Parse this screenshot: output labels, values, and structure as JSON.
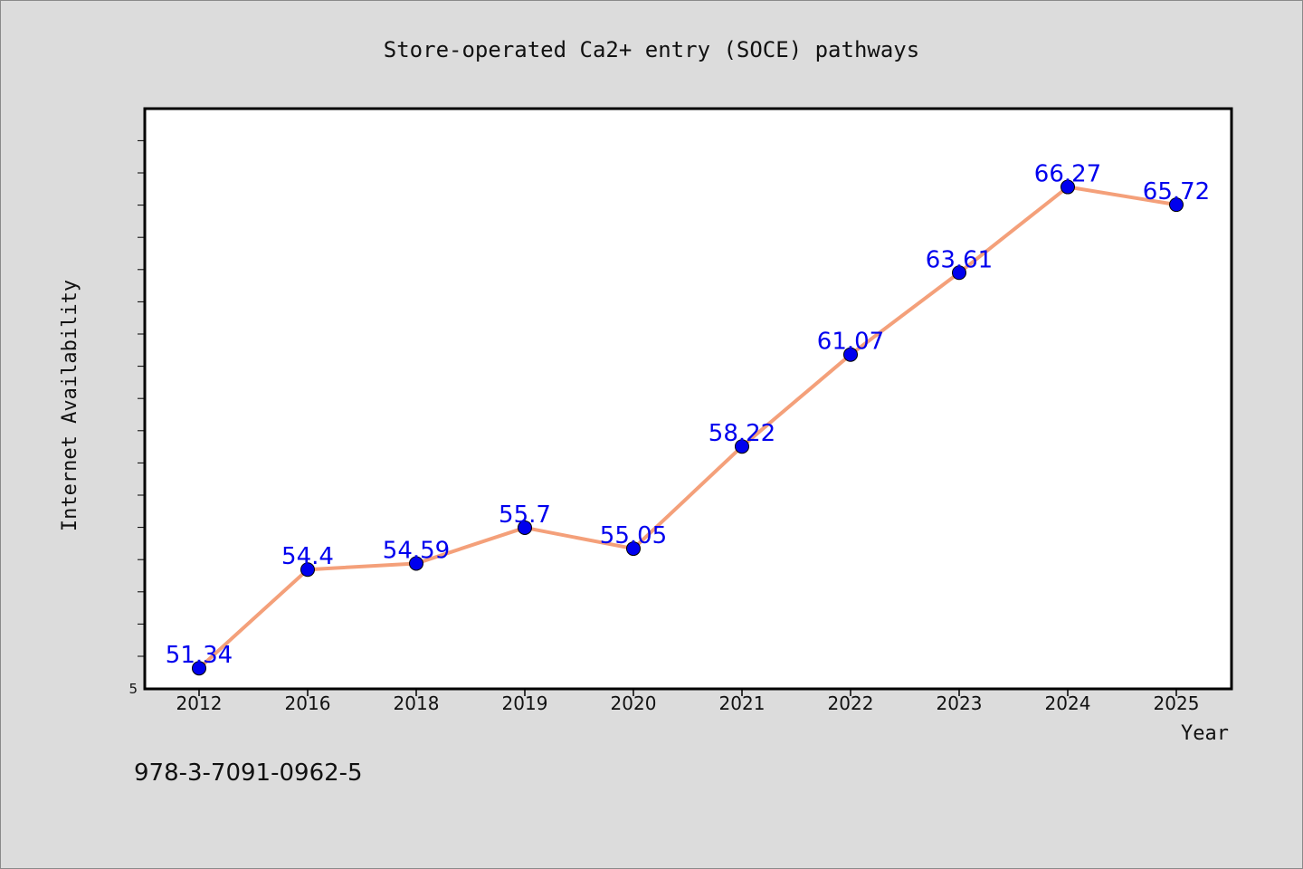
{
  "chart_data": {
    "type": "line",
    "title": "Store-operated Ca2+ entry (SOCE) pathways",
    "xlabel": "Year",
    "ylabel": "Internet Availability",
    "categories": [
      "2012",
      "2016",
      "2018",
      "2019",
      "2020",
      "2021",
      "2022",
      "2023",
      "2024",
      "2025"
    ],
    "values": [
      51.34,
      54.4,
      54.59,
      55.7,
      55.05,
      58.22,
      61.07,
      63.61,
      66.27,
      65.72
    ],
    "data_labels": [
      "51.34",
      "54.4",
      "54.59",
      "55.7",
      "55.05",
      "58.22",
      "61.07",
      "63.61",
      "66.27",
      "65.72"
    ],
    "y_tick_label": "5",
    "ylim": [
      50.7,
      68.7
    ],
    "grid": false,
    "line_color": "#f4a07a",
    "marker_color": "#0000ee",
    "label_color": "#0000ee"
  },
  "footer": {
    "isbn": "978-3-7091-0962-5"
  }
}
